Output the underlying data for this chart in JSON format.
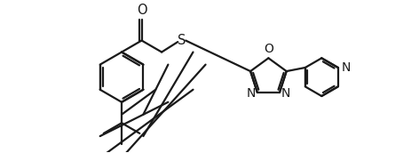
{
  "bg_color": "#ffffff",
  "line_color": "#1a1a1a",
  "line_width": 1.6,
  "font_size": 10.5,
  "figsize": [
    4.72,
    1.72
  ],
  "dpi": 100,
  "xlim": [
    0,
    14.0
  ],
  "ylim": [
    2.5,
    9.0
  ]
}
